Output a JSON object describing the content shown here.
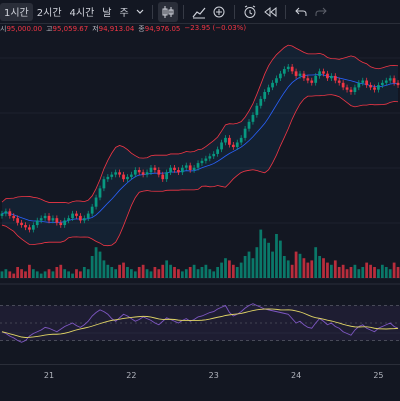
{
  "toolbar": {
    "intervals": [
      {
        "label": "1시간",
        "active": true
      },
      {
        "label": "2시간",
        "active": false
      },
      {
        "label": "4시간",
        "active": false
      },
      {
        "label": "날",
        "active": false
      },
      {
        "label": "주",
        "active": false
      }
    ],
    "dropdown_icon": "chevron-down-icon",
    "icons": [
      "candlestick-icon",
      "indicators-icon",
      "add-icon",
      "alert-clock-icon",
      "replay-icon",
      "undo-icon",
      "redo-icon"
    ]
  },
  "ohlc": {
    "open_label": "시",
    "open": "95,000.00",
    "high_label": "고",
    "high": "95,059.67",
    "low_label": "저",
    "low": "94,913.04",
    "close_label": "종",
    "close": "94,976.05",
    "change": "−23.95 (−0.03%)",
    "colors": {
      "label": "#b2b5be",
      "down": "#f23645",
      "up": "#089981"
    }
  },
  "x_axis": {
    "labels": [
      "21",
      "22",
      "23",
      "24",
      "25"
    ]
  },
  "colors": {
    "background": "#131722",
    "up": "#089981",
    "down": "#f23645",
    "bb_basis": "#2962ff",
    "bb_band": "#f23645",
    "bb_fill": "#2196f3",
    "rsi_line": "#7e57c2",
    "rsi_ma": "#e0d465",
    "rsi_band": "#7e57c2"
  },
  "chart_data": {
    "type": "candlestick",
    "candles_close": [
      55,
      56,
      54,
      53,
      51,
      50,
      49,
      48,
      50,
      52,
      53,
      54,
      52,
      53,
      51,
      50,
      52,
      53,
      55,
      54,
      52,
      53,
      55,
      58,
      62,
      66,
      70,
      71,
      72,
      73,
      72,
      70,
      71,
      72,
      74,
      73,
      72,
      73,
      75,
      74,
      72,
      70,
      73,
      75,
      74,
      73,
      75,
      76,
      74,
      75,
      77,
      78,
      79,
      80,
      81,
      83,
      86,
      88,
      85,
      84,
      86,
      88,
      92,
      95,
      98,
      102,
      105,
      108,
      110,
      112,
      114,
      116,
      118,
      119,
      117,
      115,
      116,
      114,
      113,
      112,
      115,
      117,
      116,
      114,
      115,
      113,
      112,
      110,
      109,
      108,
      110,
      112,
      113,
      111,
      110,
      109,
      111,
      112,
      113,
      114,
      112,
      111
    ],
    "volume": [
      3,
      4,
      3,
      2,
      5,
      4,
      3,
      6,
      4,
      3,
      2,
      3,
      4,
      3,
      5,
      6,
      4,
      3,
      2,
      4,
      3,
      5,
      4,
      10,
      14,
      12,
      8,
      6,
      5,
      4,
      6,
      7,
      5,
      4,
      3,
      5,
      6,
      4,
      3,
      5,
      4,
      6,
      8,
      6,
      5,
      4,
      3,
      4,
      5,
      6,
      4,
      5,
      6,
      4,
      3,
      5,
      7,
      9,
      8,
      6,
      5,
      7,
      10,
      12,
      9,
      14,
      22,
      18,
      16,
      12,
      20,
      17,
      10,
      8,
      6,
      12,
      11,
      9,
      7,
      8,
      14,
      10,
      9,
      7,
      6,
      8,
      5,
      6,
      4,
      5,
      6,
      4,
      5,
      7,
      6,
      5,
      4,
      6,
      5,
      4,
      7,
      5
    ],
    "rsi": [
      40,
      38,
      35,
      33,
      30,
      28,
      30,
      35,
      38,
      40,
      42,
      45,
      44,
      42,
      40,
      43,
      46,
      48,
      50,
      47,
      45,
      48,
      52,
      58,
      62,
      65,
      63,
      60,
      55,
      52,
      56,
      60,
      58,
      55,
      52,
      54,
      57,
      55,
      53,
      50,
      48,
      52,
      56,
      54,
      52,
      50,
      53,
      55,
      52,
      54,
      57,
      58,
      60,
      62,
      63,
      66,
      68,
      70,
      62,
      58,
      60,
      63,
      67,
      70,
      72,
      70,
      68,
      66,
      65,
      64,
      63,
      62,
      61,
      60,
      55,
      50,
      52,
      48,
      45,
      44,
      50,
      55,
      52,
      48,
      50,
      46,
      44,
      40,
      38,
      36,
      42,
      46,
      48,
      44,
      42,
      40,
      44,
      46,
      48,
      50,
      46,
      44
    ],
    "rsi_levels": [
      70,
      30
    ],
    "x_ticks": [
      "21",
      "22",
      "23",
      "24",
      "25"
    ]
  }
}
